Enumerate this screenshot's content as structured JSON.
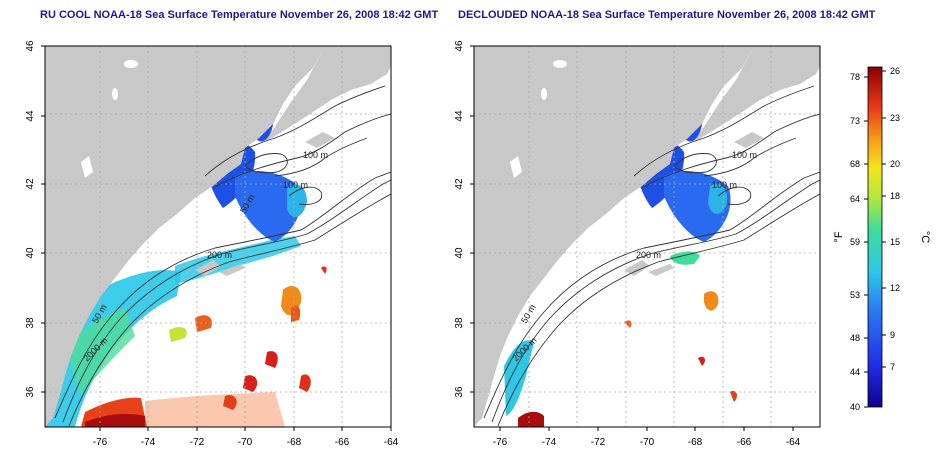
{
  "left_panel": {
    "title": "RU COOL NOAA-18 Sea Surface Temperature November 26, 2008 18:42 GMT",
    "contour_labels": [
      "100 m",
      "100 m",
      "50 m",
      "200 m",
      "50 m",
      "2000 m"
    ],
    "x_ticks": [
      "-76",
      "-74",
      "-72",
      "-70",
      "-68",
      "-66",
      "-64"
    ],
    "y_ticks": [
      "46",
      "44",
      "42",
      "40",
      "38",
      "36"
    ]
  },
  "right_panel": {
    "title": "DECLOUDED NOAA-18 Sea Surface Temperature November 26, 2008 18:42 GMT",
    "contour_labels": [
      "100 m",
      "100 m",
      "200 m",
      "50 m",
      "2000 m"
    ],
    "x_ticks": [
      "-76",
      "-74",
      "-72",
      "-70",
      "-68",
      "-66",
      "-64"
    ],
    "y_ticks": [
      "46",
      "44",
      "42",
      "40",
      "38",
      "36"
    ]
  },
  "colorbar": {
    "f_label": "°F",
    "c_label": "°C",
    "f_ticks": [
      "78",
      "73",
      "68",
      "64",
      "59",
      "53",
      "48",
      "44",
      "40"
    ],
    "c_ticks": [
      "26",
      "23",
      "20",
      "18",
      "15",
      "12",
      "9",
      "7"
    ]
  },
  "colors": {
    "land": "#c8c8c8",
    "water": "#ffffff",
    "title": "#1a1a8c",
    "scale_cold": "#10008c",
    "scale_mid": "#2ec8e6",
    "scale_warm": "#8c0000"
  }
}
